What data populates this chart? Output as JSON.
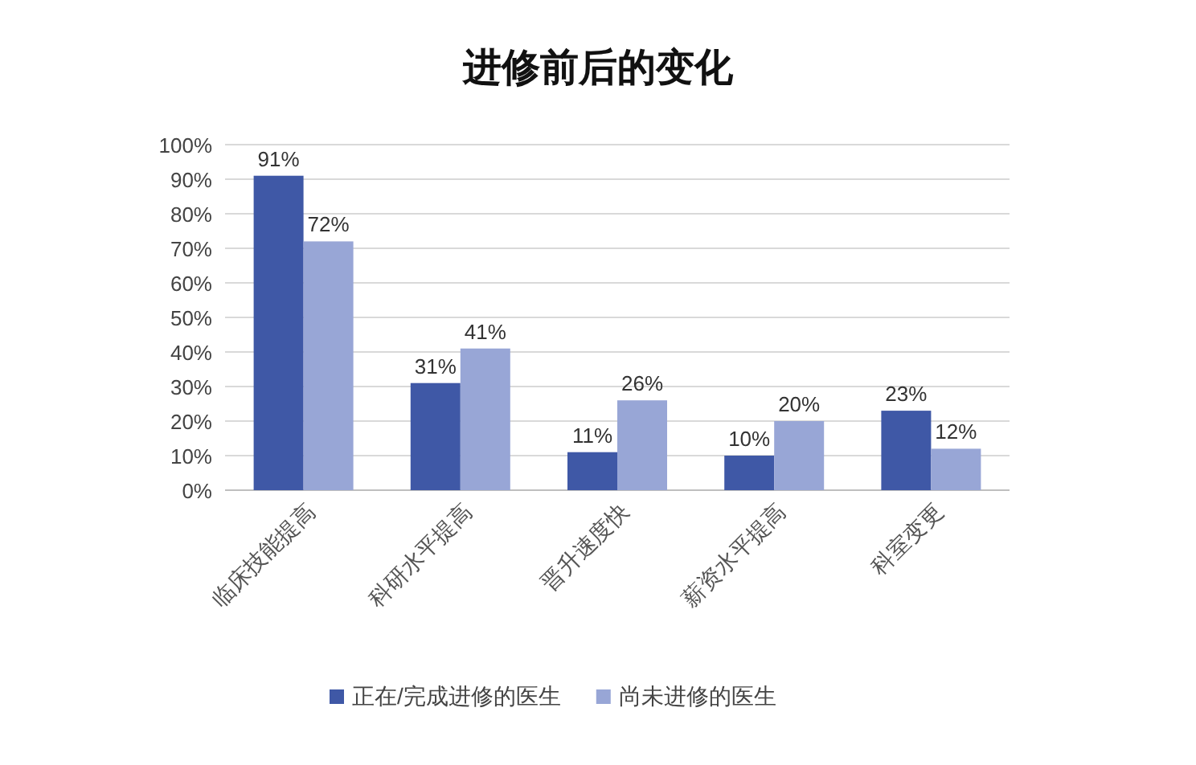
{
  "chart_data": {
    "type": "bar",
    "title": "进修前后的变化",
    "categories": [
      "临床技能提高",
      "科研水平提高",
      "晋升速度快",
      "薪资水平提高",
      "科室变更"
    ],
    "series": [
      {
        "name": "正在/完成进修的医生",
        "color": "#3f58a6",
        "values": [
          91,
          31,
          11,
          10,
          23
        ],
        "value_labels": [
          "91%",
          "31%",
          "11%",
          "10%",
          "23%"
        ]
      },
      {
        "name": "尚未进修的医生",
        "color": "#98a6d6",
        "values": [
          72,
          41,
          26,
          20,
          12
        ],
        "value_labels": [
          "72%",
          "41%",
          "26%",
          "20%",
          "12%"
        ]
      }
    ],
    "ylim": [
      0,
      100
    ],
    "yticks": [
      {
        "value": 0,
        "label": "0%"
      },
      {
        "value": 10,
        "label": "10%"
      },
      {
        "value": 20,
        "label": "20%"
      },
      {
        "value": 30,
        "label": "30%"
      },
      {
        "value": 40,
        "label": "40%"
      },
      {
        "value": 50,
        "label": "50%"
      },
      {
        "value": 60,
        "label": "60%"
      },
      {
        "value": 70,
        "label": "70%"
      },
      {
        "value": 80,
        "label": "80%"
      },
      {
        "value": 90,
        "label": "90%"
      },
      {
        "value": 100,
        "label": "100%"
      }
    ],
    "grid": "y",
    "legend": "bottom"
  }
}
